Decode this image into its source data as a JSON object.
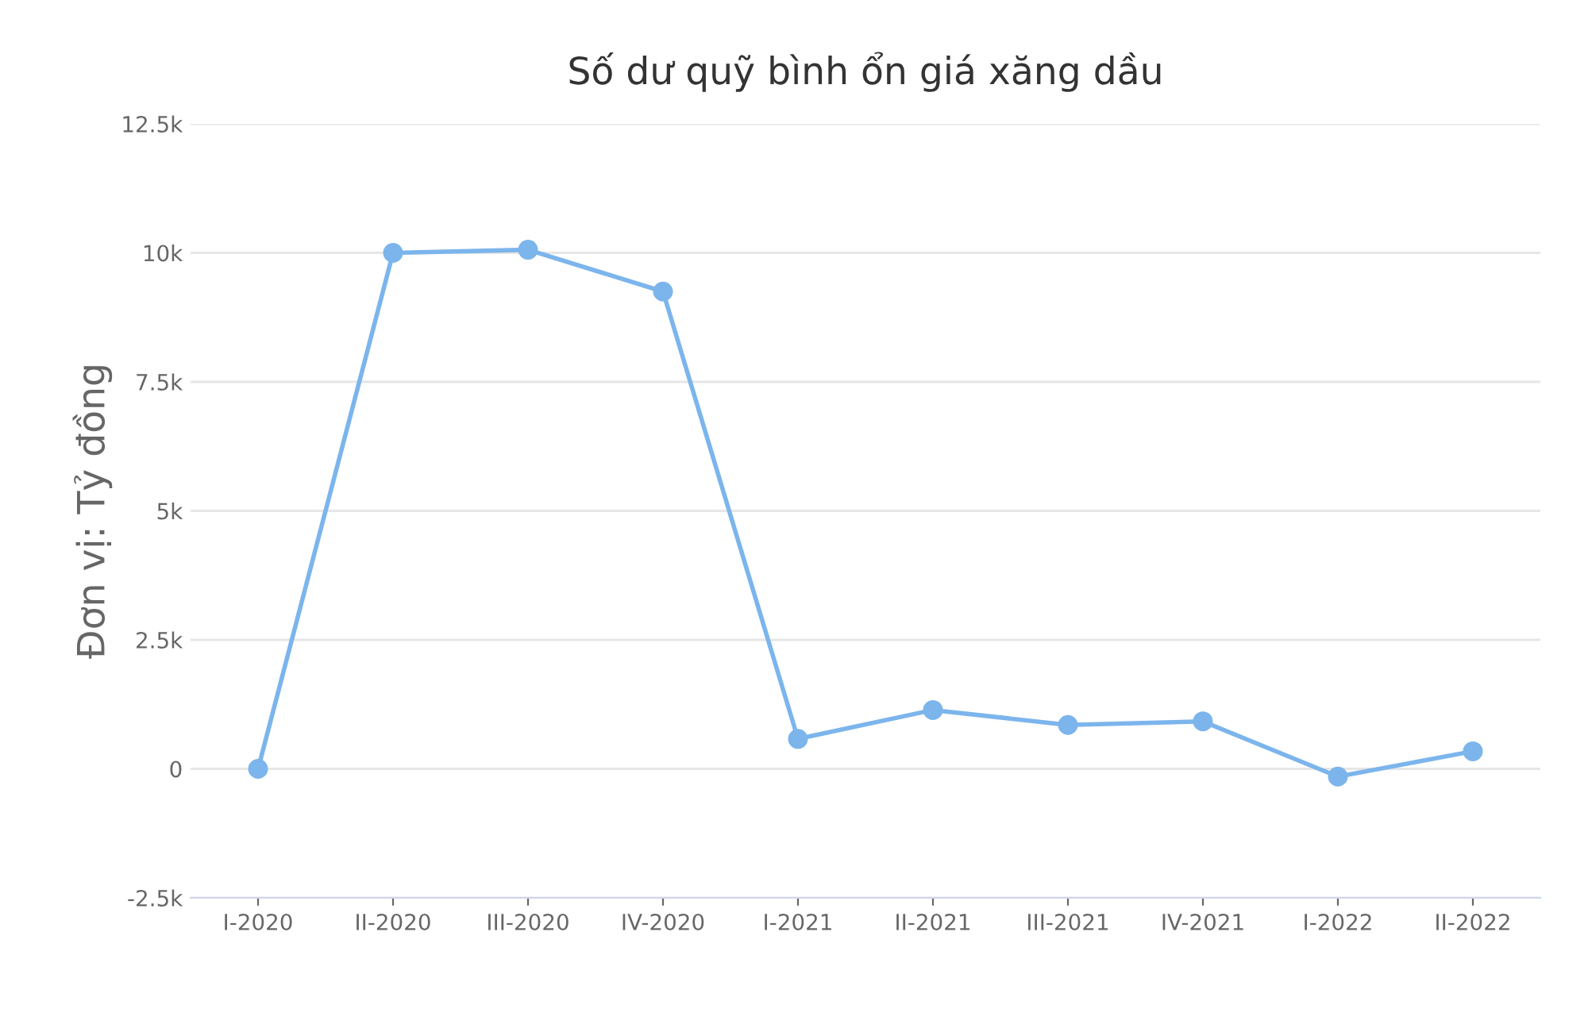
{
  "chart_data": {
    "type": "line",
    "title": "Số dư quỹ bình ổn giá xăng dầu",
    "ylabel": "Đơn vị: Tỷ đồng",
    "categories": [
      "I-2020",
      "II-2020",
      "III-2020",
      "IV-2020",
      "I-2021",
      "II-2021",
      "III-2021",
      "IV-2021",
      "I-2022",
      "II-2022"
    ],
    "series": [
      {
        "color": "#7cb5ec",
        "values": [
          0,
          10000,
          10060,
          9250,
          580,
          1140,
          850,
          920,
          -150,
          340
        ]
      }
    ],
    "ylim": [
      -2500,
      12500
    ],
    "yticks": [
      {
        "value": -2500,
        "label": "-2.5k"
      },
      {
        "value": 0,
        "label": "0"
      },
      {
        "value": 2500,
        "label": "2.5k"
      },
      {
        "value": 5000,
        "label": "5k"
      },
      {
        "value": 7500,
        "label": "7.5k"
      },
      {
        "value": 10000,
        "label": "10k"
      },
      {
        "value": 12500,
        "label": "12.5k"
      }
    ],
    "grid": "y",
    "marker": "circle",
    "line_style": "solid"
  }
}
